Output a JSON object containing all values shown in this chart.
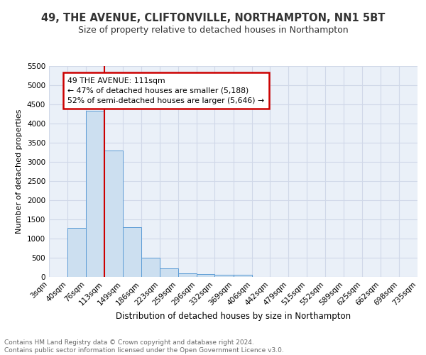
{
  "title1": "49, THE AVENUE, CLIFTONVILLE, NORTHAMPTON, NN1 5BT",
  "title2": "Size of property relative to detached houses in Northampton",
  "xlabel": "Distribution of detached houses by size in Northampton",
  "ylabel": "Number of detached properties",
  "bin_labels": [
    "3sqm",
    "40sqm",
    "76sqm",
    "113sqm",
    "149sqm",
    "186sqm",
    "223sqm",
    "259sqm",
    "296sqm",
    "332sqm",
    "369sqm",
    "406sqm",
    "442sqm",
    "479sqm",
    "515sqm",
    "552sqm",
    "589sqm",
    "625sqm",
    "662sqm",
    "698sqm",
    "735sqm"
  ],
  "bar_values": [
    0,
    1270,
    4330,
    3300,
    1290,
    490,
    215,
    100,
    80,
    60,
    60,
    0,
    0,
    0,
    0,
    0,
    0,
    0,
    0,
    0,
    0
  ],
  "bar_color": "#ccdff0",
  "bar_edge_color": "#5b9bd5",
  "grid_color": "#d0d8e8",
  "bg_color": "#eaf0f8",
  "annotation_text": "49 THE AVENUE: 111sqm\n← 47% of detached houses are smaller (5,188)\n52% of semi-detached houses are larger (5,646) →",
  "annotation_box_color": "#ffffff",
  "annotation_edge_color": "#cc0000",
  "vline_color": "#cc0000",
  "vline_x": 113,
  "bin_edges": [
    3,
    40,
    76,
    113,
    149,
    186,
    223,
    259,
    296,
    332,
    369,
    406,
    442,
    479,
    515,
    552,
    589,
    625,
    662,
    698,
    735
  ],
  "ylim": [
    0,
    5500
  ],
  "yticks": [
    0,
    500,
    1000,
    1500,
    2000,
    2500,
    3000,
    3500,
    4000,
    4500,
    5000,
    5500
  ],
  "footer_text": "Contains HM Land Registry data © Crown copyright and database right 2024.\nContains public sector information licensed under the Open Government Licence v3.0.",
  "title1_fontsize": 10.5,
  "title2_fontsize": 9,
  "xlabel_fontsize": 8.5,
  "ylabel_fontsize": 8,
  "tick_fontsize": 7.5,
  "footer_fontsize": 6.5
}
